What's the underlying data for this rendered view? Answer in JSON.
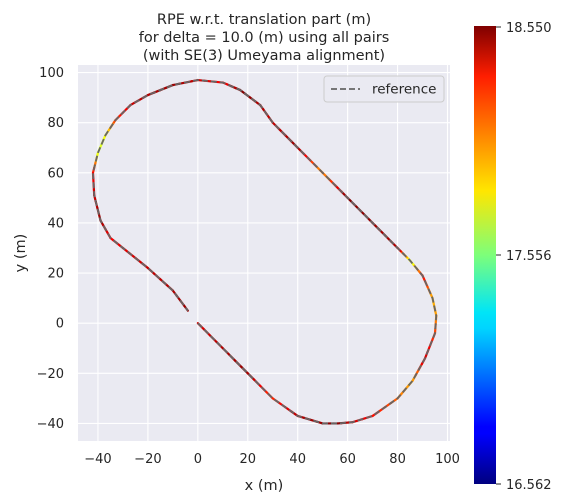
{
  "chart_data": {
    "type": "line",
    "title_lines": [
      "RPE w.r.t. translation part (m)",
      "for delta = 10.0 (m) using all pairs",
      "(with SE(3) Umeyama alignment)"
    ],
    "xlabel": "x (m)",
    "ylabel": "y (m)",
    "xlim": [
      -48,
      101
    ],
    "ylim": [
      -47,
      103
    ],
    "xticks": [
      "−40",
      "−20",
      "0",
      "20",
      "40",
      "60",
      "80",
      "100"
    ],
    "yticks": [
      "−40",
      "−20",
      "0",
      "20",
      "40",
      "60",
      "80",
      "100"
    ],
    "grid": true,
    "legend": {
      "position": "upper-right",
      "entries": [
        "reference"
      ]
    },
    "colorbar": {
      "colormap": "jet",
      "min": 16.562,
      "max": 18.55,
      "tick_labels": [
        "16.562",
        "17.556",
        "18.550"
      ]
    },
    "series": [
      {
        "name": "reference",
        "style": "dashed",
        "color": "#666666",
        "points": [
          [
            0,
            0
          ],
          [
            10,
            -10
          ],
          [
            20,
            -20
          ],
          [
            30,
            -30
          ],
          [
            40,
            -37
          ],
          [
            50,
            -40
          ],
          [
            56,
            -40
          ],
          [
            62,
            -39.5
          ],
          [
            70,
            -37
          ],
          [
            80,
            -30
          ],
          [
            86,
            -23
          ],
          [
            91,
            -14
          ],
          [
            95,
            -4
          ],
          [
            95.5,
            3
          ],
          [
            94,
            10
          ],
          [
            90,
            19
          ],
          [
            85,
            25
          ],
          [
            80,
            30
          ],
          [
            70,
            40
          ],
          [
            60,
            50
          ],
          [
            50,
            60
          ],
          [
            40,
            70
          ],
          [
            30,
            80
          ],
          [
            25,
            87
          ],
          [
            17,
            93
          ],
          [
            10,
            96
          ],
          [
            0,
            97
          ],
          [
            -10,
            95
          ],
          [
            -20,
            91
          ],
          [
            -27,
            87
          ],
          [
            -33,
            81
          ],
          [
            -37,
            75
          ],
          [
            -40,
            68
          ],
          [
            -42,
            60
          ],
          [
            -41.5,
            51
          ],
          [
            -39,
            41
          ],
          [
            -35,
            34
          ],
          [
            -30,
            30
          ],
          [
            -20,
            22
          ],
          [
            -10,
            13
          ],
          [
            -4,
            5
          ]
        ]
      },
      {
        "name": "",
        "style": "colormapped",
        "points": [
          [
            0,
            0
          ],
          [
            10,
            -10
          ],
          [
            20,
            -20
          ],
          [
            30,
            -30
          ],
          [
            40,
            -37
          ],
          [
            50,
            -40
          ],
          [
            56,
            -40
          ],
          [
            62,
            -39.5
          ],
          [
            70,
            -37
          ],
          [
            80,
            -30
          ],
          [
            86,
            -23
          ],
          [
            91,
            -14
          ],
          [
            95,
            -4
          ],
          [
            95.5,
            3
          ],
          [
            94,
            10
          ],
          [
            90,
            19
          ],
          [
            85,
            25
          ],
          [
            80,
            30
          ],
          [
            70,
            40
          ],
          [
            60,
            50
          ],
          [
            50,
            60
          ],
          [
            40,
            70
          ],
          [
            30,
            80
          ],
          [
            25,
            87
          ],
          [
            17,
            93
          ],
          [
            10,
            96
          ],
          [
            0,
            97
          ],
          [
            -10,
            95
          ],
          [
            -20,
            91
          ],
          [
            -27,
            87
          ],
          [
            -33,
            81
          ],
          [
            -37,
            75
          ],
          [
            -40,
            68
          ],
          [
            -42,
            60
          ],
          [
            -41.5,
            51
          ],
          [
            -39,
            41
          ],
          [
            -35,
            34
          ],
          [
            -30,
            30
          ],
          [
            -20,
            22
          ],
          [
            -10,
            13
          ],
          [
            -4,
            5
          ]
        ],
        "values": [
          18.35,
          18.45,
          18.5,
          18.2,
          18.45,
          18.5,
          18.55,
          18.4,
          18.3,
          18.1,
          17.95,
          18.4,
          18.2,
          18.0,
          17.95,
          18.3,
          17.7,
          18.45,
          18.5,
          18.55,
          18.0,
          18.5,
          18.4,
          18.45,
          18.55,
          18.3,
          18.4,
          18.5,
          18.45,
          18.4,
          18.2,
          17.8,
          17.7,
          18.3,
          18.4,
          18.5,
          18.3,
          18.35,
          18.4,
          18.45,
          18.5
        ]
      }
    ]
  }
}
